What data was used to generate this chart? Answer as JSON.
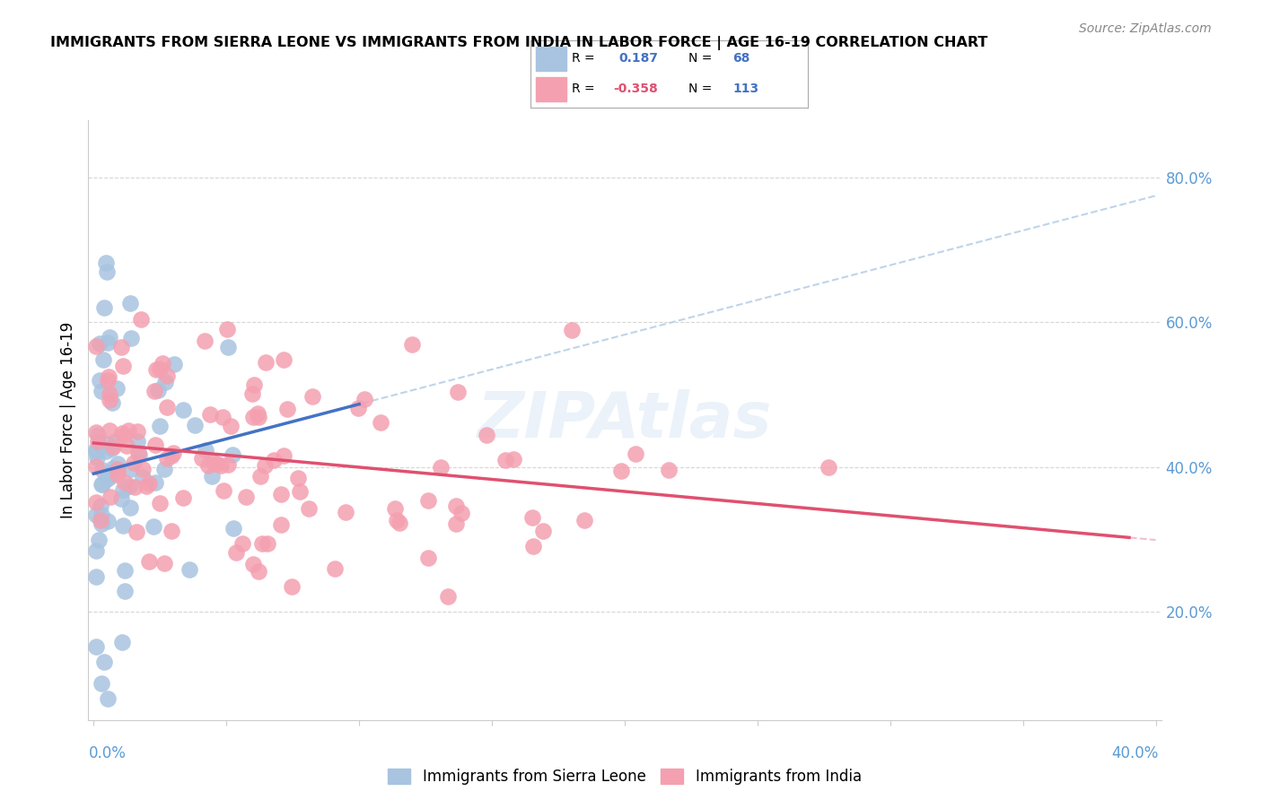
{
  "title": "IMMIGRANTS FROM SIERRA LEONE VS IMMIGRANTS FROM INDIA IN LABOR FORCE | AGE 16-19 CORRELATION CHART",
  "source": "Source: ZipAtlas.com",
  "ylabel": "In Labor Force | Age 16-19",
  "y_ticks": [
    0.2,
    0.4,
    0.6,
    0.8
  ],
  "y_tick_labels": [
    "20.0%",
    "40.0%",
    "60.0%",
    "80.0%"
  ],
  "x_range": [
    0.0,
    0.4
  ],
  "y_range": [
    0.05,
    0.88
  ],
  "sierra_leone_color": "#a8c4e0",
  "india_color": "#f4a0b0",
  "sierra_leone_line_color": "#4472c4",
  "india_line_color": "#e05070",
  "sierra_leone_dashed_color": "#b8d0e8",
  "india_dashed_color": "#f0b8c8",
  "watermark": "ZIPAtlas",
  "tick_color": "#5B9BD5"
}
